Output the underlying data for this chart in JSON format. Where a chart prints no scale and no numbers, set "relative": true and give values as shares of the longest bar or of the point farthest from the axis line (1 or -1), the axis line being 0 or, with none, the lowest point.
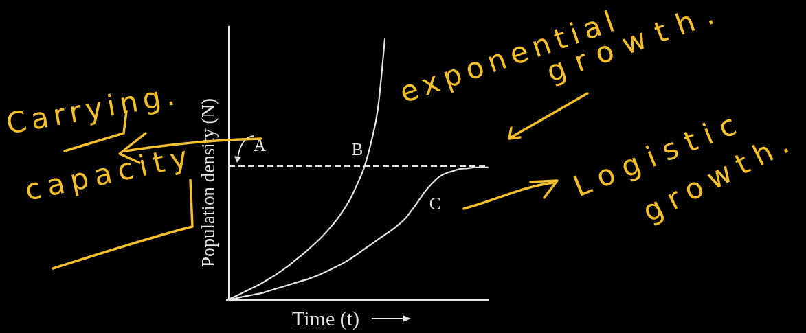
{
  "chart_data": {
    "type": "line",
    "relative": true,
    "xlabel": "Time (t)",
    "ylabel": "Population density (N)",
    "categories": [
      null,
      null,
      null,
      null,
      null,
      null,
      null,
      null,
      null,
      null,
      null,
      null,
      null,
      null,
      null,
      null,
      null,
      null,
      null,
      null,
      null,
      null,
      null,
      null,
      null,
      null,
      null,
      null,
      null,
      null,
      null,
      null,
      null,
      null,
      null,
      null,
      null,
      null,
      null
    ],
    "series": [
      {
        "name": "B",
        "color": "#e6e6e6",
        "values": [
          0,
          0.011,
          0.024,
          0.037,
          0.05,
          0.063,
          0.079,
          0.095,
          0.113,
          0.132,
          0.153,
          0.174,
          0.197,
          0.221,
          0.247,
          0.276,
          0.308,
          0.345,
          0.389,
          0.445,
          0.508,
          0.603,
          0.734,
          1,
          null,
          null,
          null,
          null,
          null,
          null,
          null,
          null,
          null,
          null,
          null,
          null,
          null,
          null,
          null
        ]
      },
      {
        "name": "C",
        "color": "#e6e6e6",
        "values": [
          0,
          0.005,
          0.011,
          0.016,
          0.021,
          0.026,
          0.034,
          0.042,
          0.05,
          0.058,
          0.066,
          0.074,
          0.082,
          0.092,
          0.103,
          0.116,
          0.129,
          0.142,
          0.158,
          0.176,
          0.195,
          0.213,
          0.232,
          0.25,
          0.268,
          0.289,
          0.313,
          0.347,
          0.384,
          0.421,
          0.45,
          0.474,
          0.487,
          0.495,
          0.503,
          0.505,
          0.508,
          0.508,
          0.508
        ]
      }
    ],
    "ref_lines": [
      {
        "axis": "y",
        "value": 0.513,
        "label": "A",
        "color": "#e6e6e6",
        "line_style": "dashed"
      }
    ],
    "annotations": [
      "Carrying. capacity",
      "exponential growth.",
      "Logistic growth."
    ],
    "line_style": "solid"
  }
}
